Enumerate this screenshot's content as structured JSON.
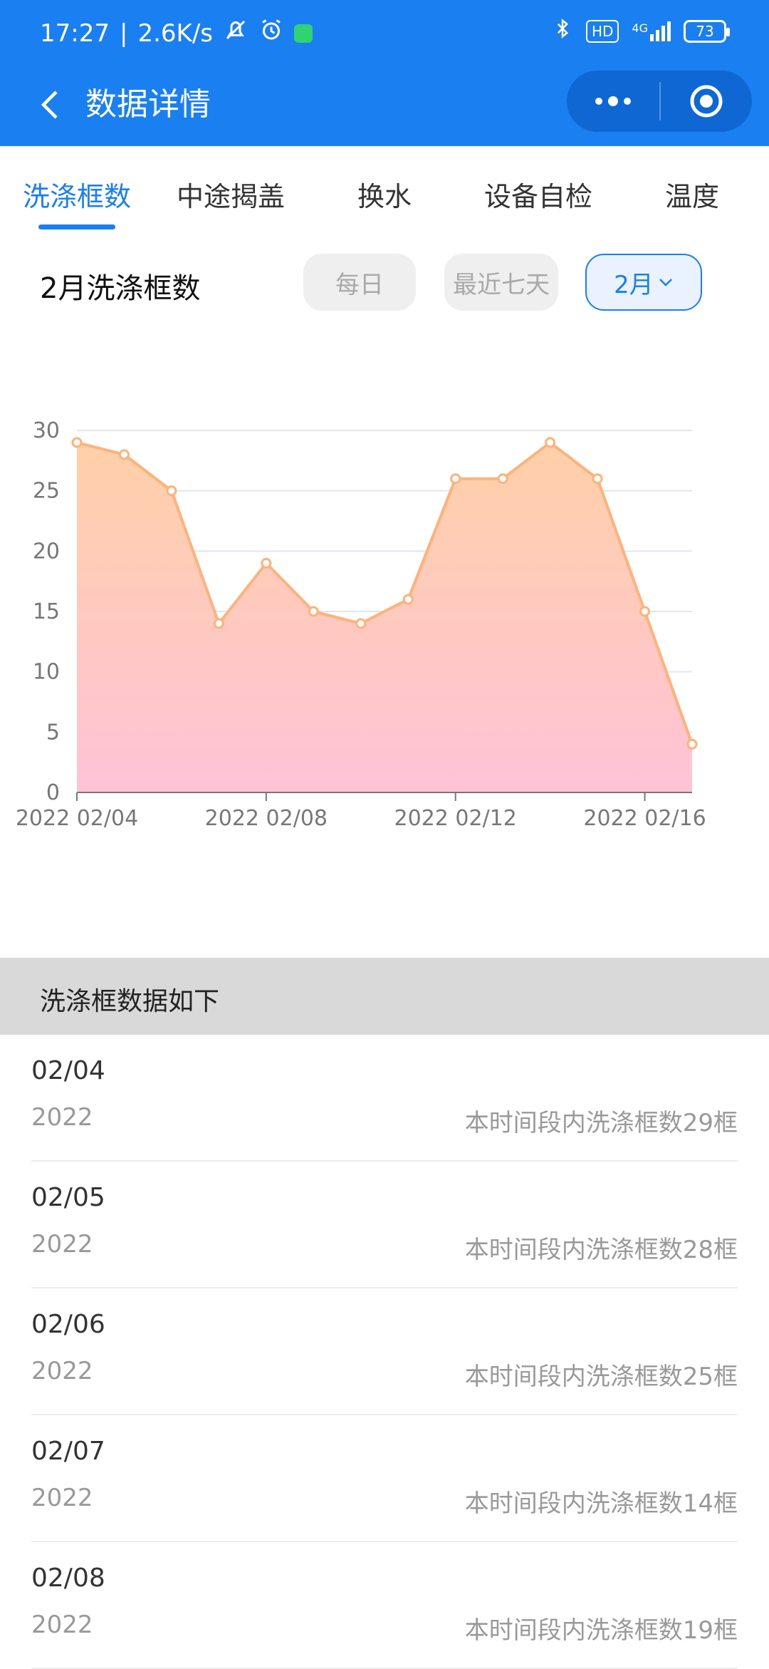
{
  "status_bar": {
    "time": "17:27",
    "speed": "2.6K/s",
    "signal": "4G",
    "hd": "HD",
    "battery": "73"
  },
  "navbar": {
    "title": "数据详情"
  },
  "tabs": [
    {
      "label": "洗涤框数",
      "active": true
    },
    {
      "label": "中途揭盖",
      "active": false
    },
    {
      "label": "换水",
      "active": false
    },
    {
      "label": "设备自检",
      "active": false
    },
    {
      "label": "温度",
      "active": false
    }
  ],
  "section": {
    "title": "2月洗涤框数",
    "filters": {
      "daily": "每日",
      "last7": "最近七天",
      "month": "2月"
    }
  },
  "chart_data": {
    "type": "area",
    "x": [
      "2022 02/04",
      "2022 02/05",
      "2022 02/06",
      "2022 02/07",
      "2022 02/08",
      "2022 02/09",
      "2022 02/10",
      "2022 02/11",
      "2022 02/12",
      "2022 02/13",
      "2022 02/14",
      "2022 02/15",
      "2022 02/16",
      "2022 02/17"
    ],
    "values": [
      29,
      28,
      25,
      14,
      19,
      15,
      14,
      16,
      26,
      26,
      29,
      26,
      15,
      4
    ],
    "x_tick_labels": [
      "2022 02/04",
      "2022 02/08",
      "2022 02/12",
      "2022 02/16"
    ],
    "y_ticks": [
      0,
      5,
      10,
      15,
      20,
      25,
      30
    ],
    "ylim": [
      0,
      30
    ],
    "grid": true,
    "colors": {
      "line": "#ffb27a",
      "fill_top": "#ffd0a8",
      "fill_bottom": "#ffc3d7"
    }
  },
  "list": {
    "header": "洗涤框数据如下",
    "rows": [
      {
        "date": "02/04",
        "year": "2022",
        "desc": "本时间段内洗涤框数29框"
      },
      {
        "date": "02/05",
        "year": "2022",
        "desc": "本时间段内洗涤框数28框"
      },
      {
        "date": "02/06",
        "year": "2022",
        "desc": "本时间段内洗涤框数25框"
      },
      {
        "date": "02/07",
        "year": "2022",
        "desc": "本时间段内洗涤框数14框"
      },
      {
        "date": "02/08",
        "year": "2022",
        "desc": "本时间段内洗涤框数19框"
      }
    ]
  }
}
